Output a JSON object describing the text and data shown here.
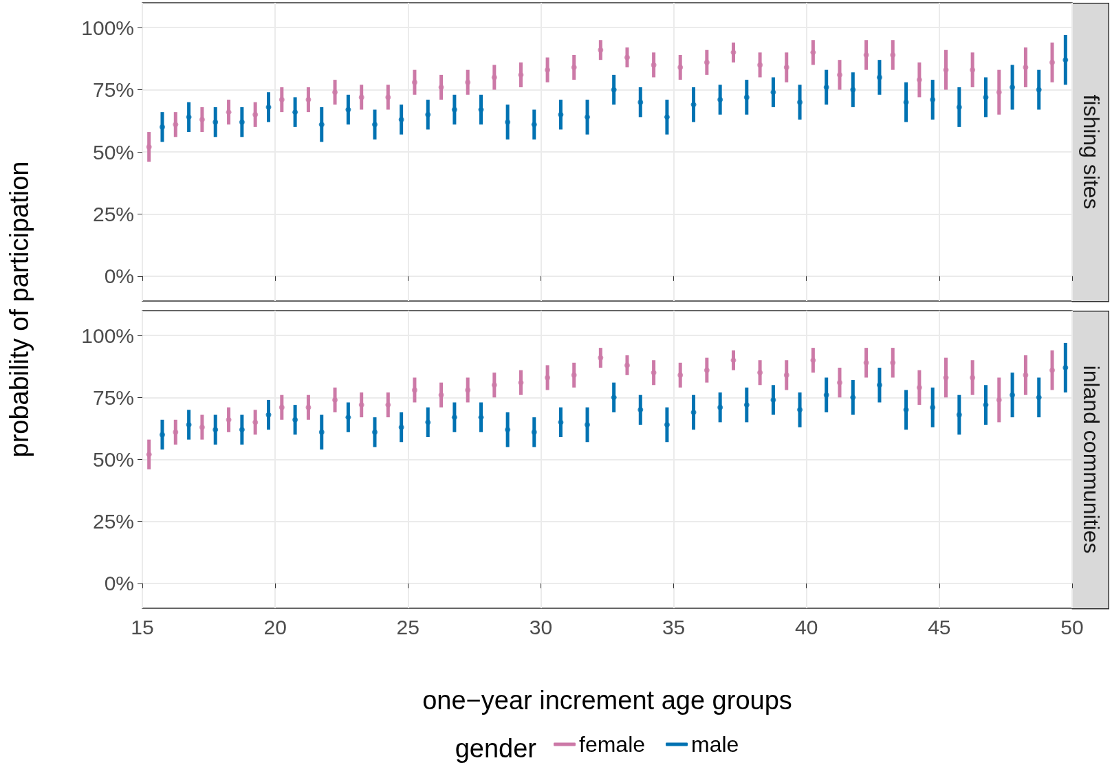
{
  "chart_data": [
    {
      "type": "scatter",
      "title": "fishing sites",
      "ylabel": "probability of participation",
      "marker": "circle",
      "grid": true,
      "tick_labels": "y",
      "xlim": [
        15,
        50
      ],
      "xticks": [
        15,
        20,
        25,
        30,
        35,
        40,
        45,
        50
      ],
      "ylim": [
        -10,
        110
      ],
      "yticks": [
        {
          "value": 0,
          "label": "0%"
        },
        {
          "value": 25,
          "label": "25%"
        },
        {
          "value": 50,
          "label": "50%"
        },
        {
          "value": 75,
          "label": "75%"
        },
        {
          "value": 100,
          "label": "100%"
        }
      ],
      "series": [
        {
          "color": "#cc79a7",
          "x": [
            15.25,
            16.25,
            17.25,
            18.25,
            19.25,
            20.25,
            21.25,
            22.25,
            23.25,
            24.25,
            25.25,
            26.25,
            27.25,
            28.25,
            29.25,
            30.25,
            31.25,
            32.25,
            33.25,
            34.25,
            35.25,
            36.25,
            37.25,
            38.25,
            39.25,
            40.25,
            41.25,
            42.25,
            43.25,
            44.25,
            45.25,
            46.25,
            47.25,
            48.25,
            49.25
          ],
          "values": [
            52,
            61,
            63,
            66,
            65,
            71,
            71,
            74,
            72,
            72,
            78,
            76,
            78,
            80,
            81,
            83,
            84,
            91,
            88,
            85,
            84,
            86,
            90,
            85,
            84,
            90,
            81,
            89,
            89,
            79,
            83,
            83,
            74,
            84,
            86
          ],
          "errors": [
            6,
            5,
            5,
            5,
            5,
            5,
            5,
            5,
            5,
            5,
            5,
            5,
            5,
            5,
            5,
            5,
            5,
            4,
            4,
            5,
            5,
            5,
            4,
            5,
            6,
            5,
            6,
            6,
            6,
            7,
            8,
            7,
            9,
            8,
            8
          ]
        },
        {
          "color": "#0072b2",
          "x": [
            15.75,
            16.75,
            17.75,
            18.75,
            19.75,
            20.75,
            21.75,
            22.75,
            23.75,
            24.75,
            25.75,
            26.75,
            27.75,
            28.75,
            29.75,
            30.75,
            31.75,
            32.75,
            33.75,
            34.75,
            35.75,
            36.75,
            37.75,
            38.75,
            39.75,
            40.75,
            41.75,
            42.75,
            43.75,
            44.75,
            45.75,
            46.75,
            47.75,
            48.75,
            49.75
          ],
          "values": [
            60,
            64,
            62,
            62,
            68,
            66,
            61,
            67,
            61,
            63,
            65,
            67,
            67,
            62,
            61,
            65,
            64,
            75,
            70,
            64,
            69,
            71,
            72,
            74,
            70,
            76,
            75,
            80,
            70,
            71,
            68,
            72,
            76,
            75,
            87
          ],
          "errors": [
            6,
            6,
            6,
            6,
            6,
            6,
            7,
            6,
            6,
            6,
            6,
            6,
            6,
            7,
            6,
            6,
            7,
            6,
            6,
            7,
            7,
            6,
            7,
            6,
            7,
            7,
            7,
            7,
            8,
            8,
            8,
            8,
            9,
            8,
            10
          ]
        }
      ]
    },
    {
      "type": "scatter",
      "title": "inland communities",
      "xlabel": "one−year increment age groups",
      "legend_title": "gender",
      "legend": "bottom",
      "marker": "circle",
      "grid": true,
      "xlim": [
        15,
        50
      ],
      "xticks": [
        15,
        20,
        25,
        30,
        35,
        40,
        45,
        50
      ],
      "ylim": [
        -10,
        110
      ],
      "yticks": [
        {
          "value": 0,
          "label": "0%"
        },
        {
          "value": 25,
          "label": "25%"
        },
        {
          "value": 50,
          "label": "50%"
        },
        {
          "value": 75,
          "label": "75%"
        },
        {
          "value": 100,
          "label": "100%"
        }
      ],
      "series": [
        {
          "name": "female",
          "color": "#cc79a7",
          "x": [
            15.25,
            16.25,
            17.25,
            18.25,
            19.25,
            20.25,
            21.25,
            22.25,
            23.25,
            24.25,
            25.25,
            26.25,
            27.25,
            28.25,
            29.25,
            30.25,
            31.25,
            32.25,
            33.25,
            34.25,
            35.25,
            36.25,
            37.25,
            38.25,
            39.25,
            40.25,
            41.25,
            42.25,
            43.25,
            44.25,
            45.25,
            46.25,
            47.25,
            48.25,
            49.25
          ],
          "values": [
            52,
            61,
            63,
            66,
            65,
            71,
            71,
            74,
            72,
            72,
            78,
            76,
            78,
            80,
            81,
            83,
            84,
            91,
            88,
            85,
            84,
            86,
            90,
            85,
            84,
            90,
            81,
            89,
            89,
            79,
            83,
            83,
            74,
            84,
            86
          ],
          "errors": [
            6,
            5,
            5,
            5,
            5,
            5,
            5,
            5,
            5,
            5,
            5,
            5,
            5,
            5,
            5,
            5,
            5,
            4,
            4,
            5,
            5,
            5,
            4,
            5,
            6,
            5,
            6,
            6,
            6,
            7,
            8,
            7,
            9,
            8,
            8
          ]
        },
        {
          "name": "male",
          "color": "#0072b2",
          "x": [
            15.75,
            16.75,
            17.75,
            18.75,
            19.75,
            20.75,
            21.75,
            22.75,
            23.75,
            24.75,
            25.75,
            26.75,
            27.75,
            28.75,
            29.75,
            30.75,
            31.75,
            32.75,
            33.75,
            34.75,
            35.75,
            36.75,
            37.75,
            38.75,
            39.75,
            40.75,
            41.75,
            42.75,
            43.75,
            44.75,
            45.75,
            46.75,
            47.75,
            48.75,
            49.75
          ],
          "values": [
            60,
            64,
            62,
            62,
            68,
            66,
            61,
            67,
            61,
            63,
            65,
            67,
            67,
            62,
            61,
            65,
            64,
            75,
            70,
            64,
            69,
            71,
            72,
            74,
            70,
            76,
            75,
            80,
            70,
            71,
            68,
            72,
            76,
            75,
            87
          ],
          "errors": [
            6,
            6,
            6,
            6,
            6,
            6,
            7,
            6,
            6,
            6,
            6,
            6,
            6,
            7,
            6,
            6,
            7,
            6,
            6,
            7,
            7,
            6,
            7,
            6,
            7,
            7,
            7,
            7,
            8,
            8,
            8,
            8,
            9,
            8,
            10
          ]
        }
      ]
    }
  ]
}
